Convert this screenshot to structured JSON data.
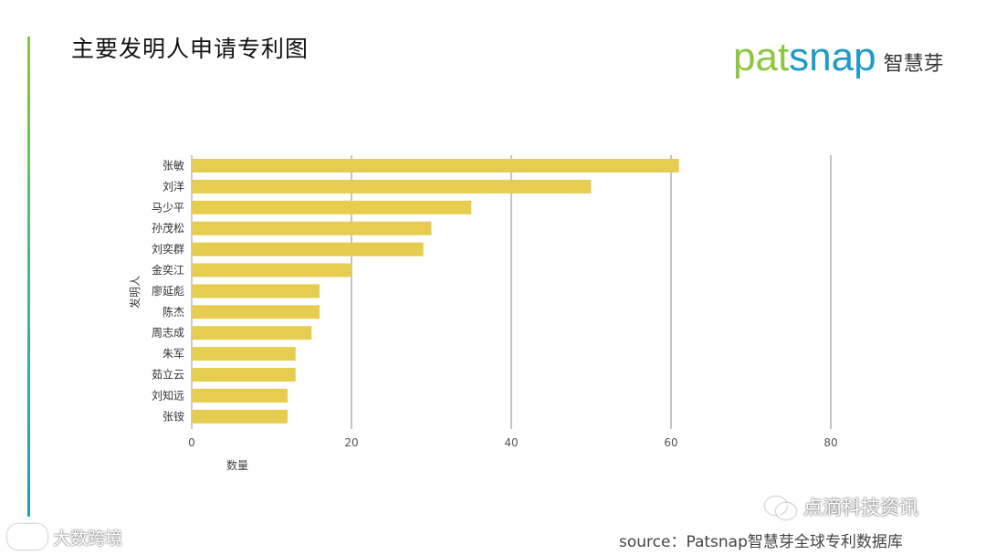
{
  "slide": {
    "title": "主要发明人申请专利图",
    "logo": {
      "part1": "pat",
      "part2": "snap",
      "cn": "智慧芽",
      "color1": "#8dc63f",
      "color2": "#1e9bc7"
    },
    "source": "source：Patsnap智慧芽全球专利数据库",
    "watermark_left": "大数跨境",
    "watermark_right": "点滴科技资讯"
  },
  "chart_data": {
    "type": "bar",
    "orientation": "horizontal",
    "title": "",
    "xlabel": "数量",
    "ylabel": "发明人",
    "xlim": [
      0,
      80
    ],
    "xticks": [
      0,
      20,
      40,
      60,
      80
    ],
    "grid": true,
    "bar_color": "#e6cd4f",
    "categories": [
      "张敏",
      "刘洋",
      "马少平",
      "孙茂松",
      "刘奕群",
      "金奕江",
      "廖延彪",
      "陈杰",
      "周志成",
      "朱军",
      "茹立云",
      "刘知远",
      "张铵"
    ],
    "values": [
      61,
      50,
      35,
      30,
      29,
      20,
      16,
      16,
      15,
      13,
      13,
      12,
      12
    ]
  }
}
